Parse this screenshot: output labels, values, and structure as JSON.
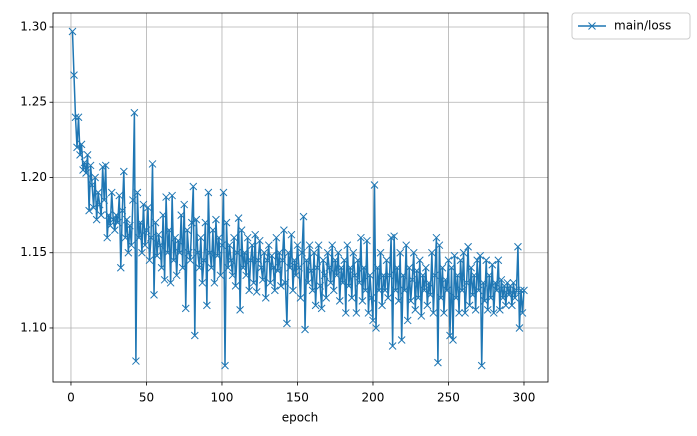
{
  "chart_data": {
    "type": "line",
    "x_label": "epoch",
    "x": [
      1,
      2,
      3,
      4,
      5,
      6,
      7,
      8,
      9,
      10,
      11,
      12,
      13,
      14,
      15,
      16,
      17,
      18,
      19,
      20,
      21,
      22,
      23,
      24,
      25,
      26,
      27,
      28,
      29,
      30,
      31,
      32,
      33,
      34,
      35,
      36,
      37,
      38,
      39,
      40,
      41,
      42,
      43,
      44,
      45,
      46,
      47,
      48,
      49,
      50,
      51,
      52,
      53,
      54,
      55,
      56,
      57,
      58,
      59,
      60,
      61,
      62,
      63,
      64,
      65,
      66,
      67,
      68,
      69,
      70,
      71,
      72,
      73,
      74,
      75,
      76,
      77,
      78,
      79,
      80,
      81,
      82,
      83,
      84,
      85,
      86,
      87,
      88,
      89,
      90,
      91,
      92,
      93,
      94,
      95,
      96,
      97,
      98,
      99,
      100,
      101,
      102,
      103,
      104,
      105,
      106,
      107,
      108,
      109,
      110,
      111,
      112,
      113,
      114,
      115,
      116,
      117,
      118,
      119,
      120,
      121,
      122,
      123,
      124,
      125,
      126,
      127,
      128,
      129,
      130,
      131,
      132,
      133,
      134,
      135,
      136,
      137,
      138,
      139,
      140,
      141,
      142,
      143,
      144,
      145,
      146,
      147,
      148,
      149,
      150,
      151,
      152,
      153,
      154,
      155,
      156,
      157,
      158,
      159,
      160,
      161,
      162,
      163,
      164,
      165,
      166,
      167,
      168,
      169,
      170,
      171,
      172,
      173,
      174,
      175,
      176,
      177,
      178,
      179,
      180,
      181,
      182,
      183,
      184,
      185,
      186,
      187,
      188,
      189,
      190,
      191,
      192,
      193,
      194,
      195,
      196,
      197,
      198,
      199,
      200,
      201,
      202,
      203,
      204,
      205,
      206,
      207,
      208,
      209,
      210,
      211,
      212,
      213,
      214,
      215,
      216,
      217,
      218,
      219,
      220,
      221,
      222,
      223,
      224,
      225,
      226,
      227,
      228,
      229,
      230,
      231,
      232,
      233,
      234,
      235,
      236,
      237,
      238,
      239,
      240,
      241,
      242,
      243,
      244,
      245,
      246,
      247,
      248,
      249,
      250,
      251,
      252,
      253,
      254,
      255,
      256,
      257,
      258,
      259,
      260,
      261,
      262,
      263,
      264,
      265,
      266,
      267,
      268,
      269,
      270,
      271,
      272,
      273,
      274,
      275,
      276,
      277,
      278,
      279,
      280,
      281,
      282,
      283,
      284,
      285,
      286,
      287,
      288,
      289,
      290,
      291,
      292,
      293,
      294,
      295,
      296,
      297,
      298,
      299,
      300
    ],
    "series": [
      {
        "name": "main/loss",
        "color": "#1f77b4",
        "marker": "x",
        "values": [
          1.297,
          1.268,
          1.24,
          1.22,
          1.24,
          1.215,
          1.222,
          1.205,
          1.21,
          1.203,
          1.215,
          1.178,
          1.208,
          1.195,
          1.18,
          1.2,
          1.172,
          1.19,
          1.182,
          1.175,
          1.207,
          1.185,
          1.208,
          1.16,
          1.175,
          1.168,
          1.19,
          1.172,
          1.165,
          1.175,
          1.17,
          1.188,
          1.14,
          1.178,
          1.204,
          1.16,
          1.172,
          1.15,
          1.168,
          1.155,
          1.185,
          1.243,
          1.078,
          1.19,
          1.16,
          1.17,
          1.15,
          1.182,
          1.155,
          1.165,
          1.18,
          1.145,
          1.16,
          1.209,
          1.122,
          1.17,
          1.148,
          1.162,
          1.155,
          1.14,
          1.175,
          1.132,
          1.187,
          1.15,
          1.165,
          1.13,
          1.188,
          1.145,
          1.16,
          1.135,
          1.158,
          1.15,
          1.175,
          1.14,
          1.182,
          1.113,
          1.165,
          1.15,
          1.145,
          1.17,
          1.194,
          1.095,
          1.172,
          1.15,
          1.14,
          1.16,
          1.13,
          1.145,
          1.17,
          1.115,
          1.19,
          1.15,
          1.14,
          1.165,
          1.13,
          1.172,
          1.148,
          1.16,
          1.135,
          1.155,
          1.19,
          1.075,
          1.17,
          1.14,
          1.155,
          1.145,
          1.135,
          1.16,
          1.128,
          1.15,
          1.173,
          1.112,
          1.165,
          1.14,
          1.15,
          1.135,
          1.16,
          1.125,
          1.145,
          1.155,
          1.13,
          1.162,
          1.124,
          1.145,
          1.158,
          1.14,
          1.132,
          1.15,
          1.12,
          1.145,
          1.155,
          1.13,
          1.148,
          1.14,
          1.125,
          1.16,
          1.138,
          1.15,
          1.128,
          1.145,
          1.165,
          1.13,
          1.103,
          1.15,
          1.14,
          1.162,
          1.125,
          1.145,
          1.135,
          1.155,
          1.14,
          1.12,
          1.15,
          1.174,
          1.099,
          1.145,
          1.13,
          1.155,
          1.138,
          1.125,
          1.15,
          1.115,
          1.14,
          1.155,
          1.128,
          1.113,
          1.145,
          1.135,
          1.12,
          1.15,
          1.14,
          1.13,
          1.155,
          1.125,
          1.145,
          1.135,
          1.15,
          1.118,
          1.14,
          1.13,
          1.145,
          1.11,
          1.155,
          1.128,
          1.14,
          1.12,
          1.15,
          1.135,
          1.11,
          1.145,
          1.13,
          1.16,
          1.118,
          1.14,
          1.125,
          1.158,
          1.11,
          1.135,
          1.12,
          1.105,
          1.195,
          1.1,
          1.14,
          1.125,
          1.15,
          1.115,
          1.135,
          1.125,
          1.145,
          1.12,
          1.135,
          1.16,
          1.088,
          1.161,
          1.125,
          1.14,
          1.118,
          1.15,
          1.092,
          1.135,
          1.125,
          1.155,
          1.105,
          1.14,
          1.118,
          1.132,
          1.15,
          1.112,
          1.138,
          1.12,
          1.145,
          1.108,
          1.135,
          1.125,
          1.14,
          1.115,
          1.13,
          1.122,
          1.15,
          1.11,
          1.135,
          1.16,
          1.077,
          1.155,
          1.12,
          1.14,
          1.11,
          1.132,
          1.125,
          1.145,
          1.095,
          1.14,
          1.092,
          1.148,
          1.12,
          1.135,
          1.11,
          1.145,
          1.125,
          1.15,
          1.11,
          1.13,
          1.154,
          1.115,
          1.14,
          1.122,
          1.135,
          1.112,
          1.145,
          1.125,
          1.148,
          1.075,
          1.13,
          1.118,
          1.145,
          1.112,
          1.135,
          1.12,
          1.142,
          1.11,
          1.13,
          1.125,
          1.145,
          1.112,
          1.132,
          1.12,
          1.128,
          1.115,
          1.13,
          1.122,
          1.128,
          1.115,
          1.13,
          1.12,
          1.125,
          1.154,
          1.1,
          1.125,
          1.11,
          1.125
        ]
      }
    ],
    "xlim": [
      -11.9,
      315.9
    ],
    "xticks": [
      0,
      50,
      100,
      150,
      200,
      250,
      300
    ],
    "ylim": [
      1.0641,
      1.3093
    ],
    "yticks": [
      {
        "value": 1.1,
        "label": "1.10"
      },
      1.15,
      {
        "value": 1.2,
        "label": "1.20"
      },
      1.25,
      {
        "value": 1.3,
        "label": "1.30"
      }
    ],
    "grid": true,
    "legend": "outside-upper-right"
  }
}
